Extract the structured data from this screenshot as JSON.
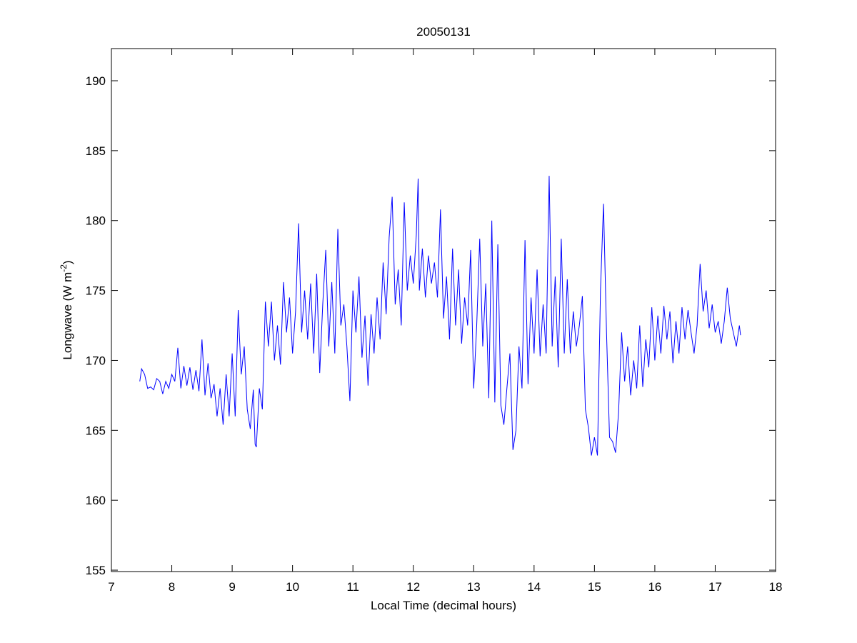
{
  "chart_data": {
    "type": "line",
    "title": "20050131",
    "xlabel": "Local Time (decimal hours)",
    "ylabel": [
      "Longwave (W m",
      "-2",
      ")"
    ],
    "color": "#0000ff",
    "xlim": [
      7,
      18
    ],
    "xticks": [
      7,
      8,
      9,
      10,
      11,
      12,
      13,
      14,
      15,
      16,
      17,
      18
    ],
    "ylim": [
      154.9,
      192.3
    ],
    "yticks": [
      155,
      160,
      165,
      170,
      175,
      180,
      185,
      190
    ],
    "grid": false,
    "x": [
      7.47,
      7.5,
      7.55,
      7.6,
      7.65,
      7.7,
      7.75,
      7.8,
      7.85,
      7.9,
      7.95,
      8,
      8.05,
      8.1,
      8.15,
      8.2,
      8.25,
      8.3,
      8.35,
      8.4,
      8.45,
      8.5,
      8.55,
      8.6,
      8.65,
      8.7,
      8.75,
      8.8,
      8.85,
      8.9,
      8.95,
      9,
      9.05,
      9.1,
      9.15,
      9.2,
      9.25,
      9.3,
      9.35,
      9.38,
      9.4,
      9.45,
      9.5,
      9.55,
      9.6,
      9.65,
      9.7,
      9.75,
      9.8,
      9.85,
      9.9,
      9.95,
      10,
      10.05,
      10.1,
      10.15,
      10.2,
      10.25,
      10.3,
      10.35,
      10.4,
      10.45,
      10.5,
      10.55,
      10.6,
      10.65,
      10.7,
      10.75,
      10.8,
      10.85,
      10.9,
      10.95,
      11,
      11.05,
      11.1,
      11.15,
      11.2,
      11.25,
      11.3,
      11.35,
      11.4,
      11.45,
      11.5,
      11.55,
      11.6,
      11.65,
      11.7,
      11.75,
      11.8,
      11.85,
      11.9,
      11.95,
      12,
      12.05,
      12.08,
      12.1,
      12.15,
      12.2,
      12.25,
      12.3,
      12.35,
      12.4,
      12.45,
      12.5,
      12.55,
      12.6,
      12.65,
      12.7,
      12.75,
      12.8,
      12.85,
      12.9,
      12.95,
      13,
      13.05,
      13.1,
      13.15,
      13.2,
      13.25,
      13.3,
      13.35,
      13.4,
      13.45,
      13.5,
      13.55,
      13.6,
      13.65,
      13.7,
      13.75,
      13.8,
      13.85,
      13.9,
      13.95,
      14,
      14.05,
      14.1,
      14.15,
      14.2,
      14.25,
      14.3,
      14.35,
      14.4,
      14.45,
      14.5,
      14.55,
      14.6,
      14.65,
      14.7,
      14.75,
      14.8,
      14.85,
      14.9,
      14.95,
      15,
      15.05,
      15.1,
      15.15,
      15.2,
      15.25,
      15.3,
      15.35,
      15.4,
      15.45,
      15.5,
      15.55,
      15.6,
      15.65,
      15.7,
      15.75,
      15.8,
      15.85,
      15.9,
      15.95,
      16,
      16.05,
      16.1,
      16.15,
      16.2,
      16.25,
      16.3,
      16.35,
      16.4,
      16.45,
      16.5,
      16.55,
      16.6,
      16.65,
      16.7,
      16.75,
      16.8,
      16.85,
      16.9,
      16.95,
      17,
      17.05,
      17.1,
      17.15,
      17.2,
      17.25,
      17.3,
      17.35,
      17.4,
      17.42
    ],
    "values": [
      168.5,
      169.4,
      169.0,
      168.0,
      168.1,
      167.9,
      168.7,
      168.5,
      167.6,
      168.5,
      168.0,
      169.0,
      168.5,
      170.9,
      168.0,
      169.6,
      168.2,
      169.5,
      167.9,
      169.3,
      167.8,
      171.5,
      167.5,
      169.8,
      167.3,
      168.3,
      166.0,
      168.0,
      165.4,
      169.0,
      166.0,
      170.5,
      166.0,
      173.6,
      169.0,
      171.0,
      166.5,
      165.1,
      167.9,
      164.0,
      163.8,
      168.0,
      166.5,
      174.2,
      171.0,
      174.2,
      170.0,
      172.5,
      169.7,
      175.6,
      172.0,
      174.5,
      170.5,
      173.5,
      179.8,
      172.0,
      175.0,
      171.5,
      175.5,
      170.5,
      176.2,
      169.1,
      174.0,
      177.9,
      171.0,
      175.6,
      170.5,
      179.4,
      172.5,
      174.0,
      171.0,
      167.1,
      175.0,
      172.0,
      176.0,
      170.2,
      173.2,
      168.2,
      173.3,
      170.5,
      174.5,
      171.5,
      177.0,
      173.3,
      178.8,
      181.7,
      174.0,
      176.5,
      172.5,
      181.3,
      175.0,
      177.5,
      175.5,
      179.0,
      183.0,
      175.0,
      178.0,
      174.5,
      177.5,
      175.5,
      177.0,
      174.5,
      180.8,
      173.0,
      176.0,
      171.5,
      178.0,
      172.5,
      176.5,
      171.2,
      174.5,
      172.5,
      177.9,
      168.0,
      172.5,
      178.7,
      171.0,
      175.5,
      167.3,
      180.0,
      167.0,
      178.3,
      166.8,
      165.4,
      168.0,
      170.5,
      163.6,
      165.0,
      171.0,
      168.0,
      178.6,
      168.3,
      174.5,
      170.5,
      176.5,
      170.3,
      174.0,
      170.5,
      183.2,
      171.0,
      176.0,
      169.5,
      178.7,
      170.5,
      175.8,
      170.5,
      173.5,
      171.0,
      172.5,
      174.6,
      166.5,
      165.2,
      163.2,
      164.5,
      163.2,
      175.0,
      181.2,
      172.0,
      164.5,
      164.2,
      163.4,
      166.3,
      172.0,
      168.5,
      171.0,
      167.5,
      170.0,
      168.0,
      172.5,
      168.1,
      171.5,
      169.5,
      173.8,
      170.0,
      173.2,
      170.5,
      173.9,
      171.5,
      173.5,
      169.8,
      172.8,
      170.5,
      173.8,
      171.5,
      173.6,
      172.0,
      170.5,
      172.5,
      176.9,
      173.5,
      175.0,
      172.3,
      174.0,
      172.0,
      172.8,
      171.2,
      172.8,
      175.2,
      173.0,
      172.0,
      171.0,
      172.5,
      171.8
    ]
  }
}
